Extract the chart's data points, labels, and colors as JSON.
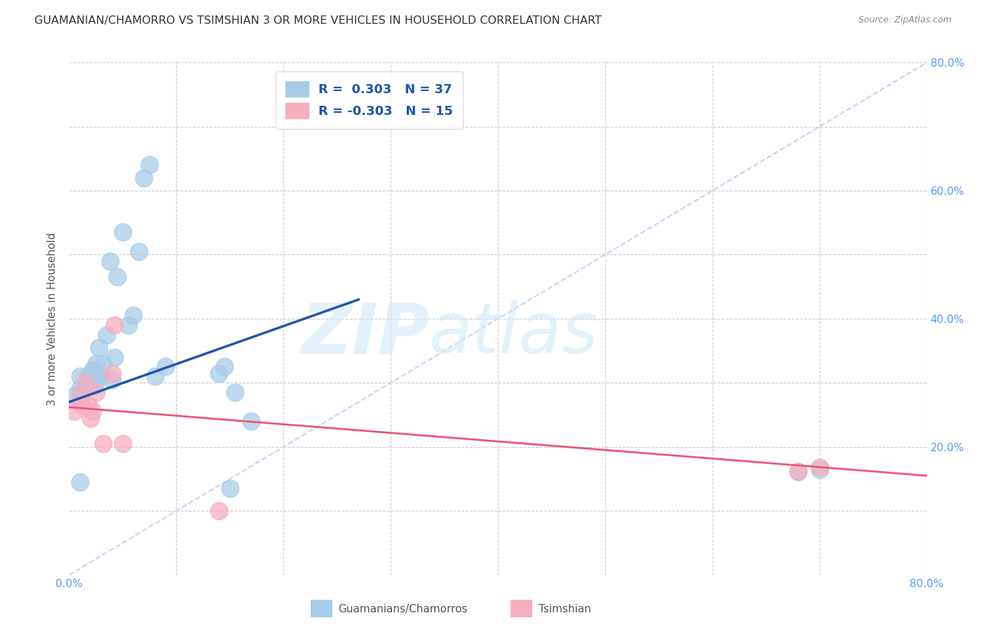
{
  "title": "GUAMANIAN/CHAMORRO VS TSIMSHIAN 3 OR MORE VEHICLES IN HOUSEHOLD CORRELATION CHART",
  "source": "Source: ZipAtlas.com",
  "tick_color": "#5599ff",
  "ylabel": "3 or more Vehicles in Household",
  "xlim": [
    0.0,
    0.8
  ],
  "ylim": [
    0.0,
    0.8
  ],
  "xticks": [
    0.0,
    0.1,
    0.2,
    0.3,
    0.4,
    0.5,
    0.6,
    0.7,
    0.8
  ],
  "xtick_labels": [
    "0.0%",
    "",
    "",
    "",
    "",
    "",
    "",
    "",
    "80.0%"
  ],
  "yticks": [
    0.2,
    0.4,
    0.6,
    0.8
  ],
  "ytick_labels_right": [
    "20.0%",
    "40.0%",
    "60.0%",
    "80.0%"
  ],
  "blue_color": "#a8cce8",
  "pink_color": "#f4afc0",
  "blue_line_color": "#2255aa",
  "pink_line_color": "#ee5577",
  "diagonal_color": "#c0d8f0",
  "watermark_zip": "ZIP",
  "watermark_atlas": "atlas",
  "blue_scatter_x": [
    0.005,
    0.01,
    0.01,
    0.01,
    0.01,
    0.015,
    0.018,
    0.02,
    0.02,
    0.022,
    0.023,
    0.025,
    0.025,
    0.027,
    0.028,
    0.03,
    0.032,
    0.035,
    0.038,
    0.04,
    0.042,
    0.045,
    0.05,
    0.055,
    0.06,
    0.065,
    0.07,
    0.075,
    0.08,
    0.09,
    0.14,
    0.145,
    0.15,
    0.155,
    0.17,
    0.68,
    0.7
  ],
  "blue_scatter_y": [
    0.28,
    0.27,
    0.29,
    0.31,
    0.145,
    0.295,
    0.31,
    0.305,
    0.315,
    0.32,
    0.295,
    0.33,
    0.305,
    0.31,
    0.355,
    0.31,
    0.33,
    0.375,
    0.49,
    0.305,
    0.34,
    0.465,
    0.535,
    0.39,
    0.405,
    0.505,
    0.62,
    0.64,
    0.31,
    0.325,
    0.315,
    0.325,
    0.135,
    0.285,
    0.24,
    0.162,
    0.165
  ],
  "pink_scatter_x": [
    0.005,
    0.01,
    0.012,
    0.015,
    0.018,
    0.02,
    0.022,
    0.025,
    0.032,
    0.04,
    0.042,
    0.05,
    0.14,
    0.68,
    0.7
  ],
  "pink_scatter_y": [
    0.255,
    0.28,
    0.265,
    0.3,
    0.265,
    0.245,
    0.255,
    0.285,
    0.205,
    0.315,
    0.39,
    0.205,
    0.1,
    0.162,
    0.168
  ],
  "blue_line_x": [
    0.0,
    0.27
  ],
  "blue_line_y": [
    0.27,
    0.43
  ],
  "pink_line_x": [
    0.0,
    0.8
  ],
  "pink_line_y": [
    0.262,
    0.155
  ],
  "grid_color": "#cccccc",
  "title_fontsize": 11.5,
  "axis_tick_fontsize": 11
}
